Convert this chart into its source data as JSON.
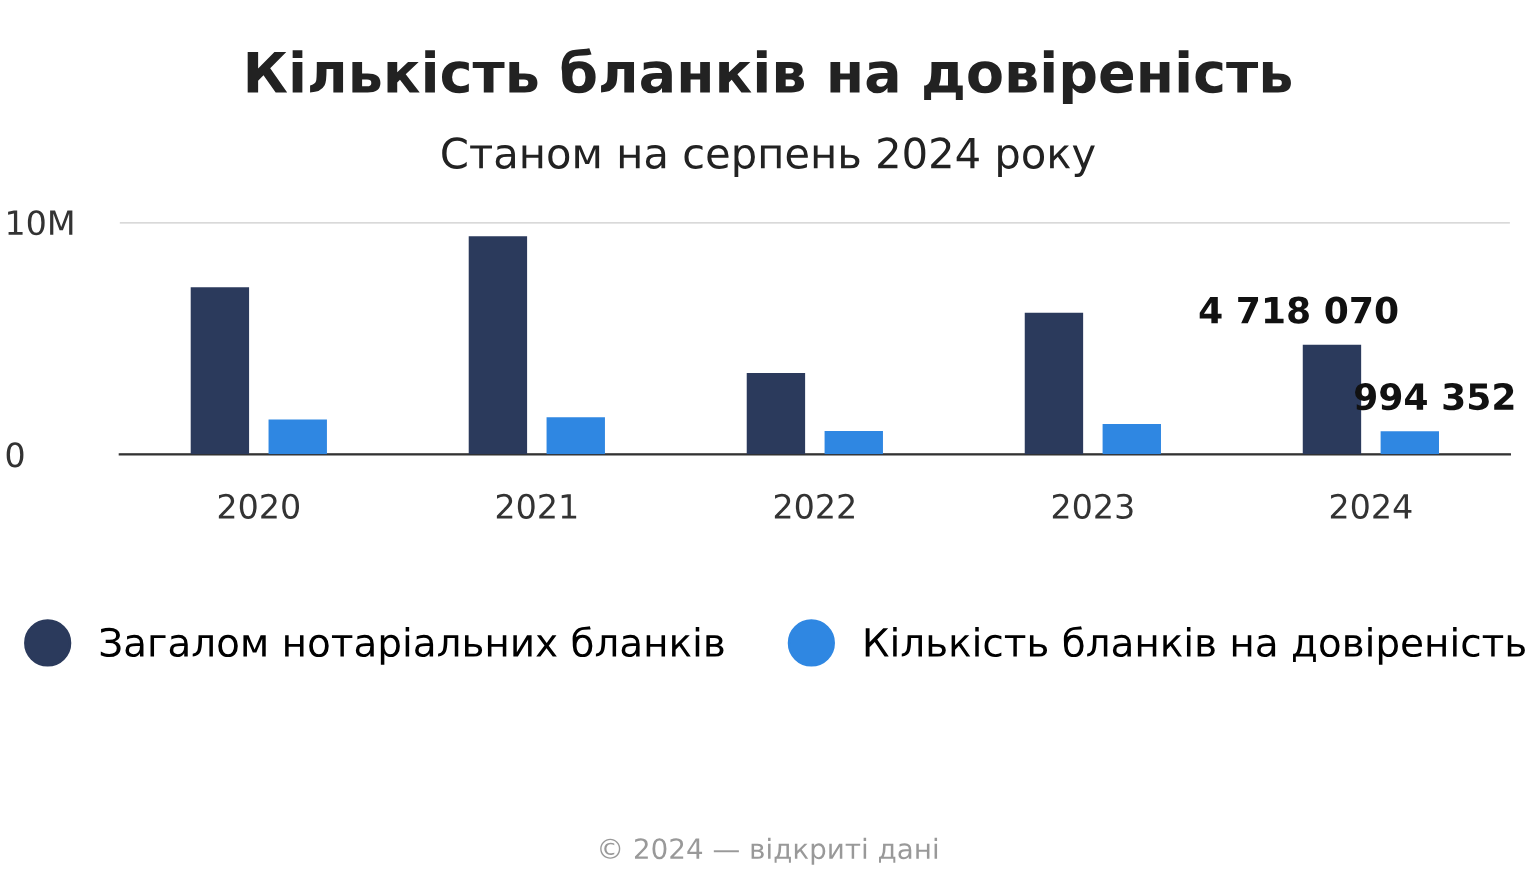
{
  "chart_data": {
    "type": "bar",
    "title": "Кількість бланків на довіреність",
    "subtitle": "Станом на серпень 2024 року",
    "categories": [
      "2020",
      "2021",
      "2022",
      "2023",
      "2024"
    ],
    "series": [
      {
        "name": "Загалом нотаріальних бланків",
        "color": "#2b3a5c",
        "values": [
          7200000,
          9400000,
          3500000,
          6100000,
          4718070
        ],
        "value_labels": [
          null,
          null,
          null,
          null,
          "4 718 070"
        ]
      },
      {
        "name": "Кількість бланків на довіреність",
        "color": "#2f87e2",
        "values": [
          1500000,
          1600000,
          1000000,
          1300000,
          994352
        ],
        "value_labels": [
          null,
          null,
          null,
          null,
          "994 352"
        ]
      }
    ],
    "ylim": [
      0,
      10000000
    ],
    "yticks": [
      0,
      {
        "value": 10000000,
        "label": "10M"
      }
    ],
    "grid": "y",
    "legend": "bottom",
    "annotations": [
      "© 2024 — відкриті дані"
    ]
  }
}
